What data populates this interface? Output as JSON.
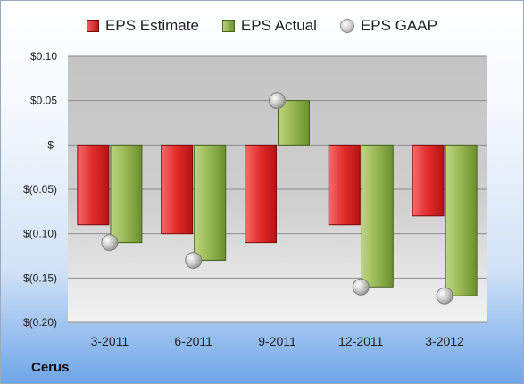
{
  "company": "Cerus",
  "chart_data": {
    "type": "bar",
    "categories": [
      "3-2011",
      "6-2011",
      "9-2011",
      "12-2011",
      "3-2012"
    ],
    "series": [
      {
        "name": "EPS Estimate",
        "values": [
          -0.09,
          -0.1,
          -0.11,
          -0.09,
          -0.08
        ],
        "color": "#d42b2b"
      },
      {
        "name": "EPS Actual",
        "values": [
          -0.11,
          -0.13,
          0.05,
          -0.16,
          -0.17
        ],
        "color": "#8fb24d"
      },
      {
        "name": "EPS GAAP",
        "values": [
          -0.11,
          -0.13,
          0.05,
          -0.16,
          -0.17
        ],
        "color": "#b8b8b8",
        "marker": "circle"
      }
    ],
    "y_ticks": [
      "$0.10",
      "$0.05",
      "$-",
      "$(0.05)",
      "$(0.10)",
      "$(0.15)",
      "$(0.20)"
    ],
    "y_tick_values": [
      0.1,
      0.05,
      0,
      -0.05,
      -0.1,
      -0.15,
      -0.2
    ],
    "ylim": [
      -0.2,
      0.1
    ],
    "grid": true,
    "legend_position": "top"
  }
}
